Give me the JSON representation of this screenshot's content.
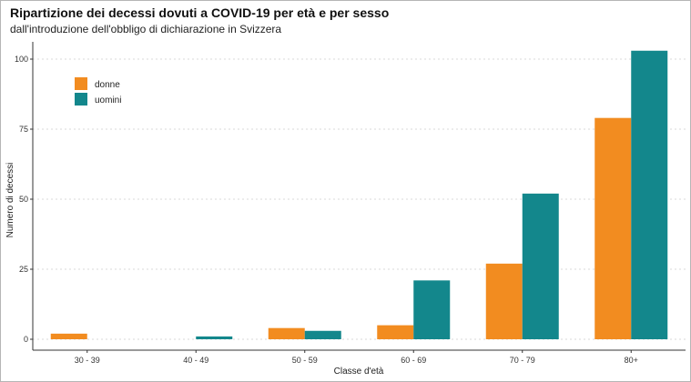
{
  "chart_data": {
    "type": "bar",
    "title": "Ripartizione dei decessi dovuti a COVID-19 per età e per sesso",
    "subtitle": "dall'introduzione dell'obbligo di dichiarazione in Svizzera",
    "xlabel": "Classe d'età",
    "ylabel": "Numero di decessi",
    "categories": [
      "30 - 39",
      "40 - 49",
      "50 - 59",
      "60 - 69",
      "70 - 79",
      "80+"
    ],
    "series": [
      {
        "name": "donne",
        "color": "#f28c20",
        "values": [
          2,
          0,
          4,
          5,
          27,
          79
        ]
      },
      {
        "name": "uomini",
        "color": "#13878c",
        "values": [
          0,
          1,
          3,
          21,
          52,
          103
        ]
      }
    ],
    "ylim": [
      0,
      105
    ],
    "yticks": [
      0,
      25,
      50,
      75,
      100
    ],
    "grid": "horizontal dotted",
    "legend_position": "top-left"
  }
}
